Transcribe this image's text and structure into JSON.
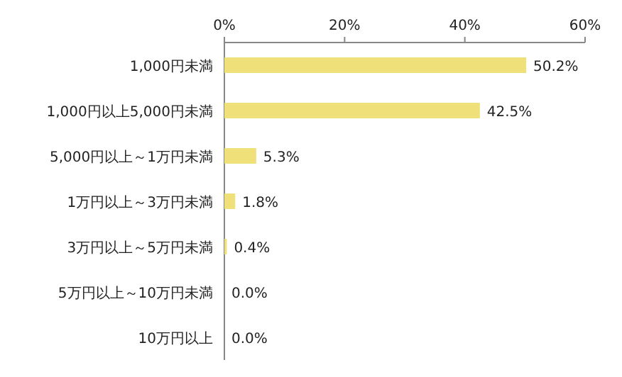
{
  "chart_data": {
    "type": "bar",
    "orientation": "horizontal",
    "categories": [
      "1,000円未満",
      "1,000円以上5,000円未満",
      "5,000円以上～1万円未満",
      "1万円以上～3万円未満",
      "3万円以上～5万円未満",
      "5万円以上～10万円未満",
      "10万円以上"
    ],
    "values": [
      50.2,
      42.5,
      5.3,
      1.8,
      0.4,
      0.0,
      0.0
    ],
    "value_labels": [
      "50.2%",
      "42.5%",
      "5.3%",
      "1.8%",
      "0.4%",
      "0.0%",
      "0.0%"
    ],
    "color": "#f0e07a",
    "xlim": [
      0,
      60
    ],
    "xticks": [
      {
        "value": 0,
        "label": "0%"
      },
      {
        "value": 20,
        "label": "20%"
      },
      {
        "value": 40,
        "label": "40%"
      },
      {
        "value": 60,
        "label": "60%"
      }
    ]
  }
}
